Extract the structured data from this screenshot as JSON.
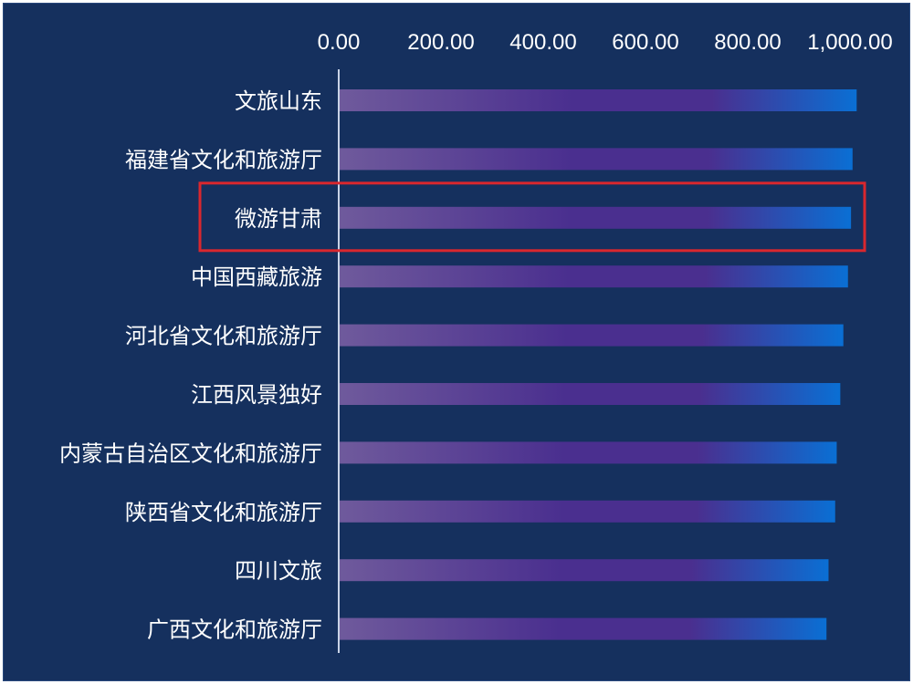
{
  "colors": {
    "background": "#15305e",
    "axis_line": "#c9d3e6",
    "bar_start": "#6f5a9c",
    "bar_mid": "#4a2f8f",
    "bar_end": "#0a6fd4",
    "highlight_box": "#d9272e"
  },
  "highlighted_category": "微游甘肃",
  "chart_data": {
    "type": "bar",
    "orientation": "horizontal",
    "title": "",
    "xlabel": "",
    "ylabel": "",
    "xlim": [
      0,
      1000
    ],
    "x_ticks": [
      "0.00",
      "200.00",
      "400.00",
      "600.00",
      "800.00",
      "1,000.00"
    ],
    "x_tick_values": [
      0,
      200,
      400,
      600,
      800,
      1000
    ],
    "x_axis_position": "top",
    "grid": false,
    "categories": [
      "文旅山东",
      "福建省文化和旅游厅",
      "微游甘肃",
      "中国西藏旅游",
      "河北省文化和旅游厅",
      "江西风景独好",
      "内蒙古自治区文化和旅游厅",
      "陕西省文化和旅游厅",
      "四川文旅",
      "广西文化和旅游厅"
    ],
    "values": [
      1013,
      1005,
      1002,
      996,
      987,
      981,
      974,
      971,
      958,
      954
    ]
  }
}
